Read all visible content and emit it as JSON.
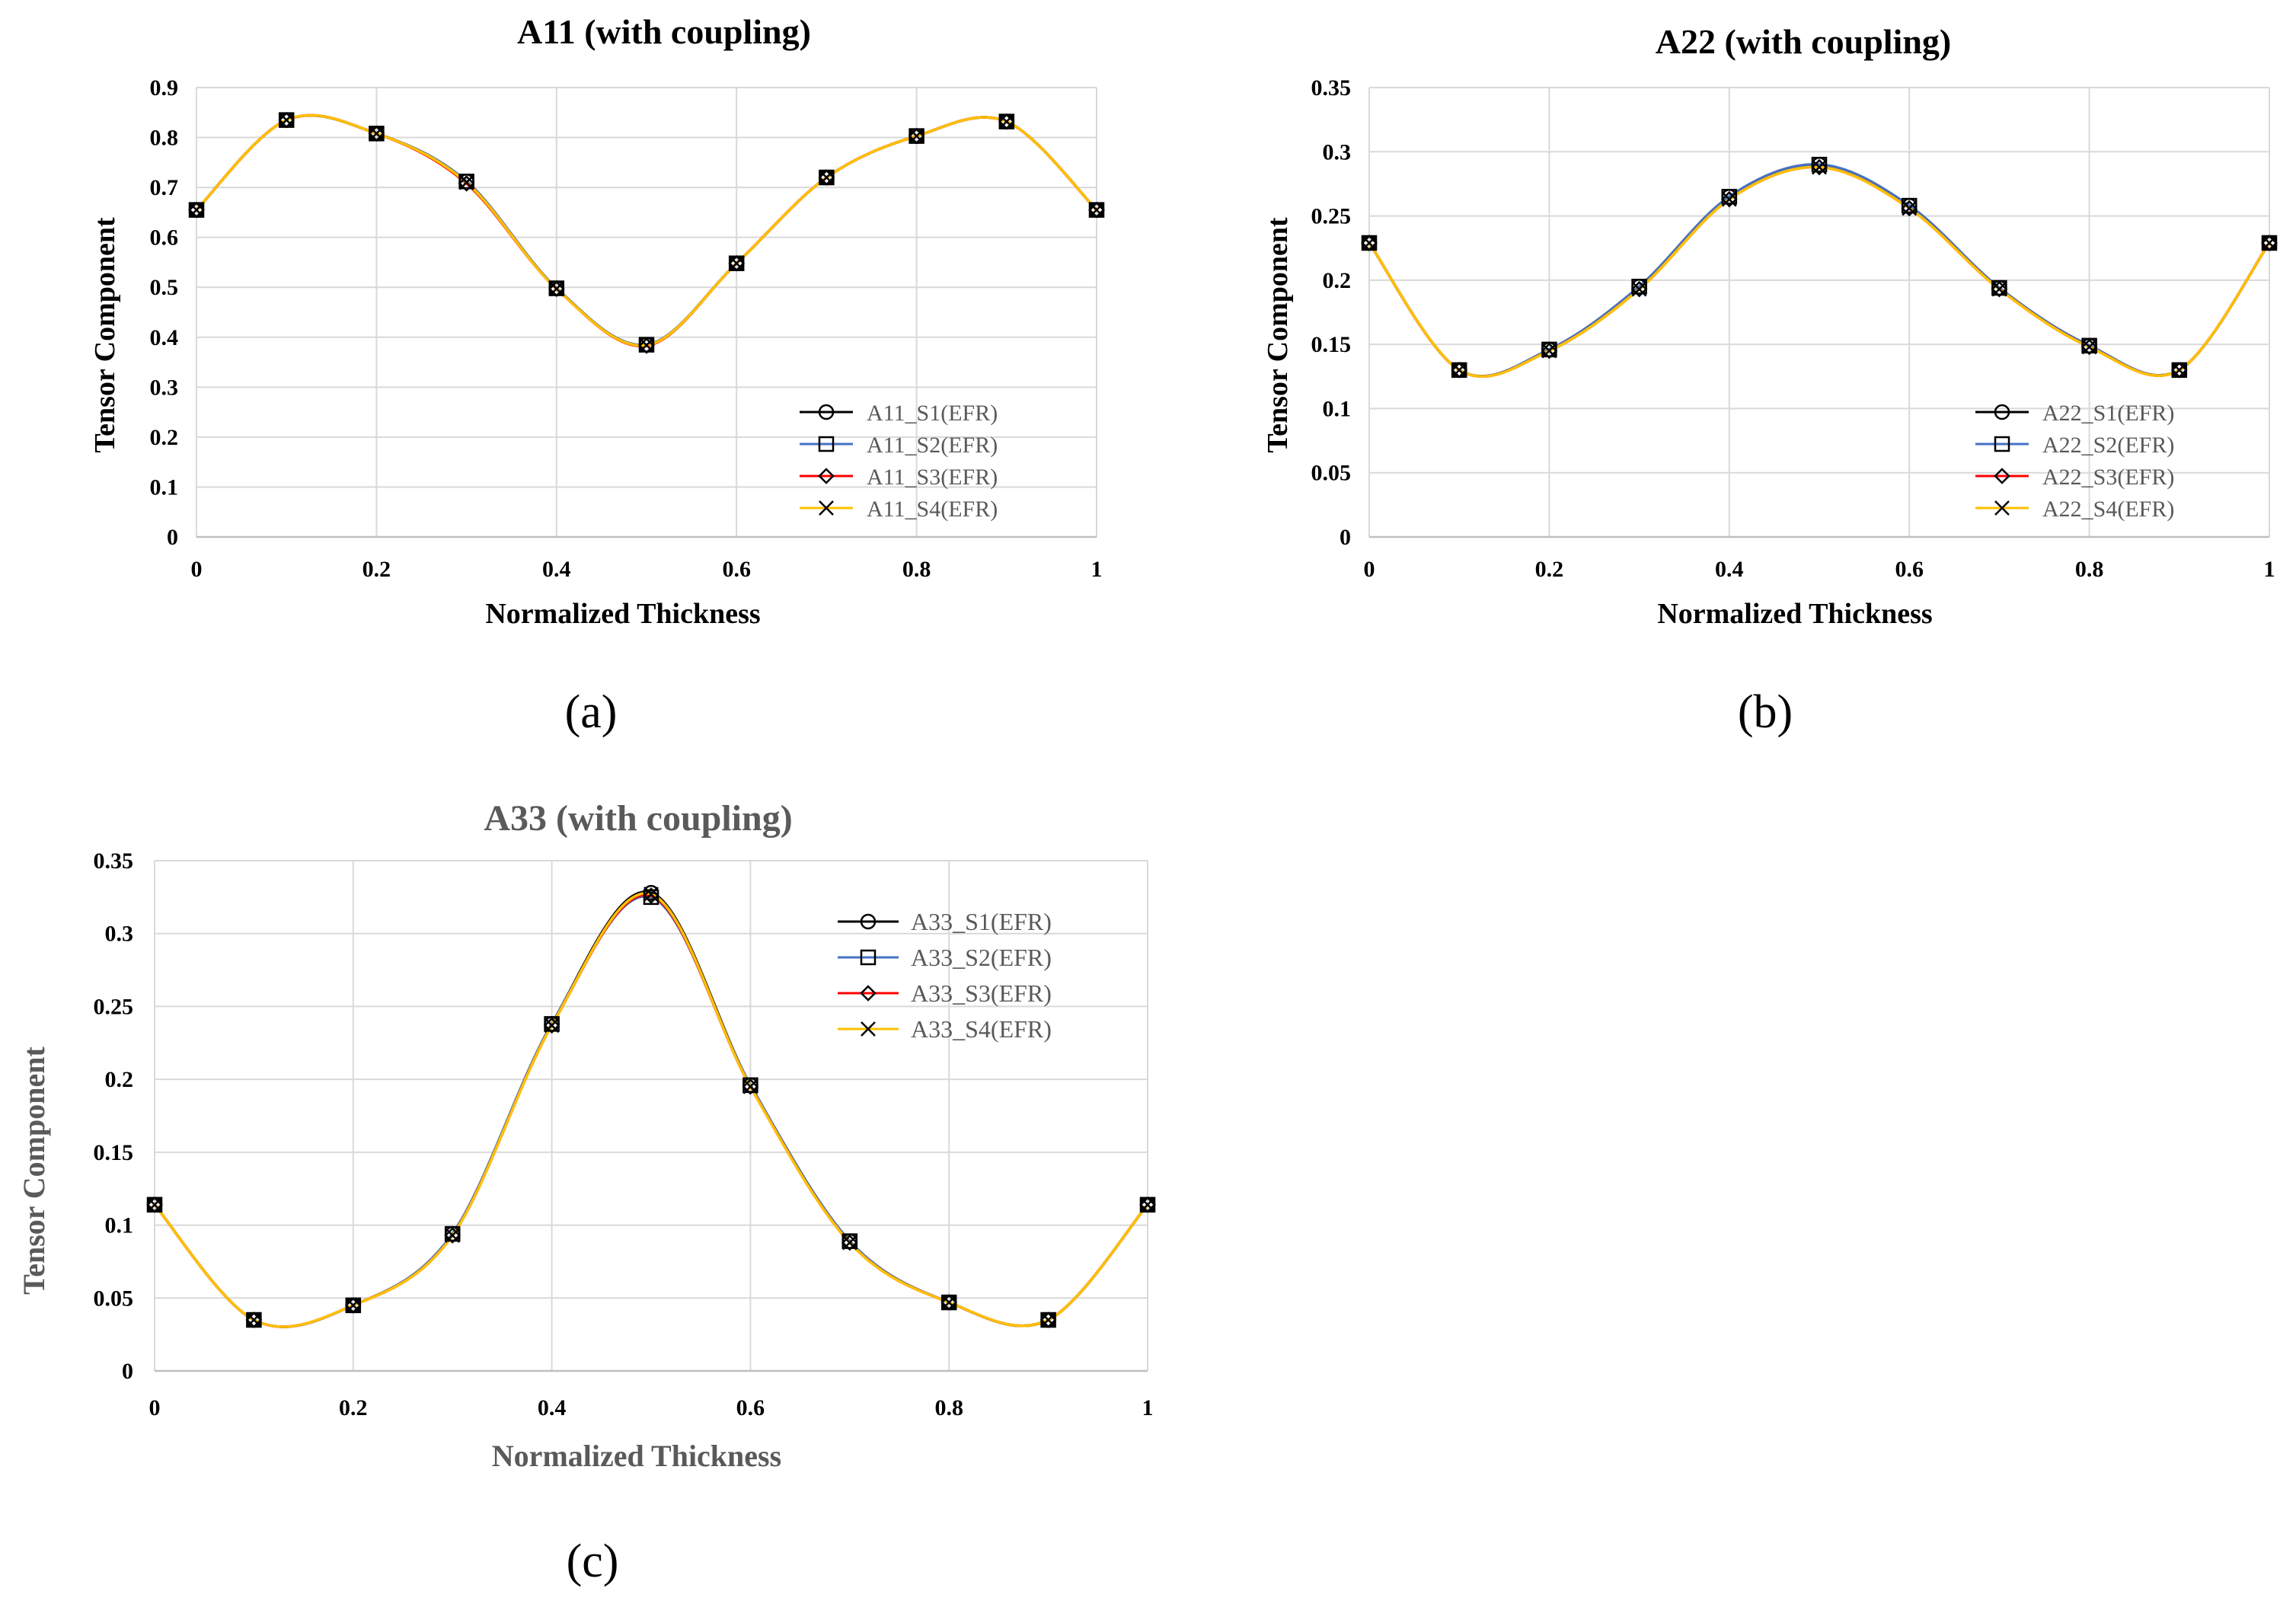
{
  "chart_data": [
    {
      "type": "line",
      "title": "A11 (with coupling)",
      "xlabel": "Normalized  Thickness",
      "ylabel": "Tensor Component",
      "panel_label": "(a)",
      "xlim": [
        0,
        1
      ],
      "ylim": [
        0,
        0.9
      ],
      "xticks": [
        "0",
        "0.2",
        "0.4",
        "0.6",
        "0.8",
        "1"
      ],
      "yticks": [
        "0",
        "0.1",
        "0.2",
        "0.3",
        "0.4",
        "0.5",
        "0.6",
        "0.7",
        "0.8",
        "0.9"
      ],
      "x": [
        0,
        0.1,
        0.2,
        0.3,
        0.4,
        0.5,
        0.6,
        0.7,
        0.8,
        0.9,
        1
      ],
      "legend_position": "bottom-right",
      "series": [
        {
          "name": "A11_S1(EFR)",
          "color": "#000000",
          "marker": "circle",
          "values": [
            0.655,
            0.835,
            0.808,
            0.712,
            0.498,
            0.385,
            0.548,
            0.72,
            0.803,
            0.832,
            0.655
          ]
        },
        {
          "name": "A11_S2(EFR)",
          "color": "#4472c4",
          "marker": "square",
          "values": [
            0.655,
            0.835,
            0.808,
            0.712,
            0.498,
            0.385,
            0.548,
            0.72,
            0.803,
            0.832,
            0.655
          ]
        },
        {
          "name": "A11_S3(EFR)",
          "color": "#ff0000",
          "marker": "diamond",
          "values": [
            0.655,
            0.835,
            0.808,
            0.708,
            0.497,
            0.383,
            0.548,
            0.72,
            0.803,
            0.832,
            0.655
          ]
        },
        {
          "name": "A11_S4(EFR)",
          "color": "#ffc000",
          "marker": "x",
          "values": [
            0.655,
            0.835,
            0.808,
            0.71,
            0.497,
            0.384,
            0.548,
            0.72,
            0.803,
            0.832,
            0.655
          ]
        }
      ]
    },
    {
      "type": "line",
      "title": "A22 (with coupling)",
      "xlabel": "Normalized  Thickness",
      "ylabel": "Tensor Component",
      "panel_label": "(b)",
      "xlim": [
        0,
        1
      ],
      "ylim": [
        0,
        0.35
      ],
      "xticks": [
        "0",
        "0.2",
        "0.4",
        "0.6",
        "0.8",
        "1"
      ],
      "yticks": [
        "0",
        "0.05",
        "0.1",
        "0.15",
        "0.2",
        "0.25",
        "0.3",
        "0.35"
      ],
      "x": [
        0,
        0.1,
        0.2,
        0.3,
        0.4,
        0.5,
        0.6,
        0.7,
        0.8,
        0.9,
        1
      ],
      "legend_position": "bottom-right",
      "series": [
        {
          "name": "A22_S1(EFR)",
          "color": "#000000",
          "marker": "circle",
          "values": [
            0.229,
            0.13,
            0.146,
            0.195,
            0.265,
            0.29,
            0.258,
            0.194,
            0.149,
            0.13,
            0.229
          ]
        },
        {
          "name": "A22_S2(EFR)",
          "color": "#4472c4",
          "marker": "square",
          "values": [
            0.229,
            0.13,
            0.146,
            0.195,
            0.265,
            0.29,
            0.258,
            0.194,
            0.149,
            0.13,
            0.229
          ]
        },
        {
          "name": "A22_S3(EFR)",
          "color": "#ff0000",
          "marker": "diamond",
          "values": [
            0.229,
            0.13,
            0.145,
            0.193,
            0.263,
            0.288,
            0.256,
            0.193,
            0.148,
            0.13,
            0.229
          ]
        },
        {
          "name": "A22_S4(EFR)",
          "color": "#ffc000",
          "marker": "x",
          "values": [
            0.229,
            0.13,
            0.145,
            0.193,
            0.263,
            0.288,
            0.256,
            0.193,
            0.148,
            0.13,
            0.229
          ]
        }
      ]
    },
    {
      "type": "line",
      "title": "A33 (with coupling)",
      "xlabel": "Normalized  Thickness",
      "ylabel": "Tensor Component",
      "panel_label": "(c)",
      "xlim": [
        0,
        1
      ],
      "ylim": [
        0,
        0.35
      ],
      "xticks": [
        "0",
        "0.2",
        "0.4",
        "0.6",
        "0.8",
        "1"
      ],
      "yticks": [
        "0",
        "0.05",
        "0.1",
        "0.15",
        "0.2",
        "0.25",
        "0.3",
        "0.35"
      ],
      "x": [
        0,
        0.1,
        0.2,
        0.3,
        0.4,
        0.5,
        0.6,
        0.7,
        0.8,
        0.9,
        1
      ],
      "legend_position": "top-right",
      "series": [
        {
          "name": "A33_S1(EFR)",
          "color": "#000000",
          "marker": "circle",
          "values": [
            0.114,
            0.035,
            0.045,
            0.094,
            0.238,
            0.328,
            0.196,
            0.089,
            0.047,
            0.035,
            0.114
          ]
        },
        {
          "name": "A33_S2(EFR)",
          "color": "#4472c4",
          "marker": "square",
          "values": [
            0.114,
            0.035,
            0.045,
            0.094,
            0.238,
            0.325,
            0.196,
            0.089,
            0.047,
            0.035,
            0.114
          ]
        },
        {
          "name": "A33_S3(EFR)",
          "color": "#ff0000",
          "marker": "diamond",
          "values": [
            0.114,
            0.035,
            0.045,
            0.093,
            0.237,
            0.326,
            0.195,
            0.088,
            0.047,
            0.035,
            0.114
          ]
        },
        {
          "name": "A33_S4(EFR)",
          "color": "#ffc000",
          "marker": "x",
          "values": [
            0.114,
            0.035,
            0.045,
            0.093,
            0.237,
            0.327,
            0.195,
            0.088,
            0.047,
            0.035,
            0.114
          ]
        }
      ]
    }
  ]
}
